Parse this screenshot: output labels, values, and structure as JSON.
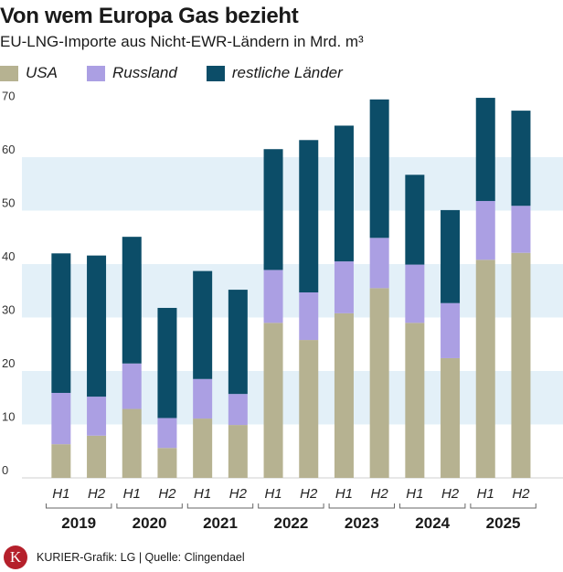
{
  "header": {
    "title": "Von wem Europa Gas bezieht",
    "subtitle": "EU-LNG-Importe aus Nicht-EWR-Ländern in Mrd. m³"
  },
  "legend": [
    {
      "label": "USA",
      "color": "#b6b291"
    },
    {
      "label": "Russland",
      "color": "#ab9fe3"
    },
    {
      "label": "restliche Länder",
      "color": "#0c4d68"
    }
  ],
  "chart_data": {
    "type": "bar",
    "stacked": true,
    "title": "Von wem Europa Gas bezieht",
    "subtitle": "EU-LNG-Importe aus Nicht-EWR-Ländern in Mrd. m³",
    "years": [
      "2019",
      "2020",
      "2021",
      "2022",
      "2023",
      "2024",
      "2025"
    ],
    "categories": [
      "H1",
      "H2",
      "H1",
      "H2",
      "H1",
      "H2",
      "H1",
      "H2",
      "H1",
      "H2",
      "H1",
      "H2",
      "H1",
      "H2"
    ],
    "series": [
      {
        "name": "USA",
        "color": "#b6b291",
        "values": [
          6.3,
          7.9,
          12.9,
          5.6,
          11.1,
          9.9,
          29.0,
          25.8,
          30.8,
          35.5,
          29.0,
          22.4,
          40.8,
          42.1
        ]
      },
      {
        "name": "Russland",
        "color": "#ab9fe3",
        "values": [
          9.6,
          7.3,
          8.5,
          5.6,
          7.4,
          5.8,
          9.9,
          8.9,
          9.7,
          9.4,
          10.9,
          10.3,
          11.0,
          8.8
        ]
      },
      {
        "name": "restliche Länder",
        "color": "#0c4d68",
        "values": [
          26.1,
          26.4,
          23.7,
          20.6,
          20.2,
          19.5,
          22.6,
          28.5,
          25.4,
          25.9,
          16.8,
          17.4,
          19.3,
          17.8
        ]
      }
    ],
    "yticks": [
      0,
      10,
      20,
      30,
      40,
      50,
      60,
      70
    ],
    "ylim": [
      0,
      70
    ],
    "xlabel": "",
    "ylabel": "",
    "grid": "horizontal bands"
  },
  "footer": {
    "logo_letter": "K",
    "credit": "KURIER-Grafik: LG | Quelle: Clingendael"
  }
}
